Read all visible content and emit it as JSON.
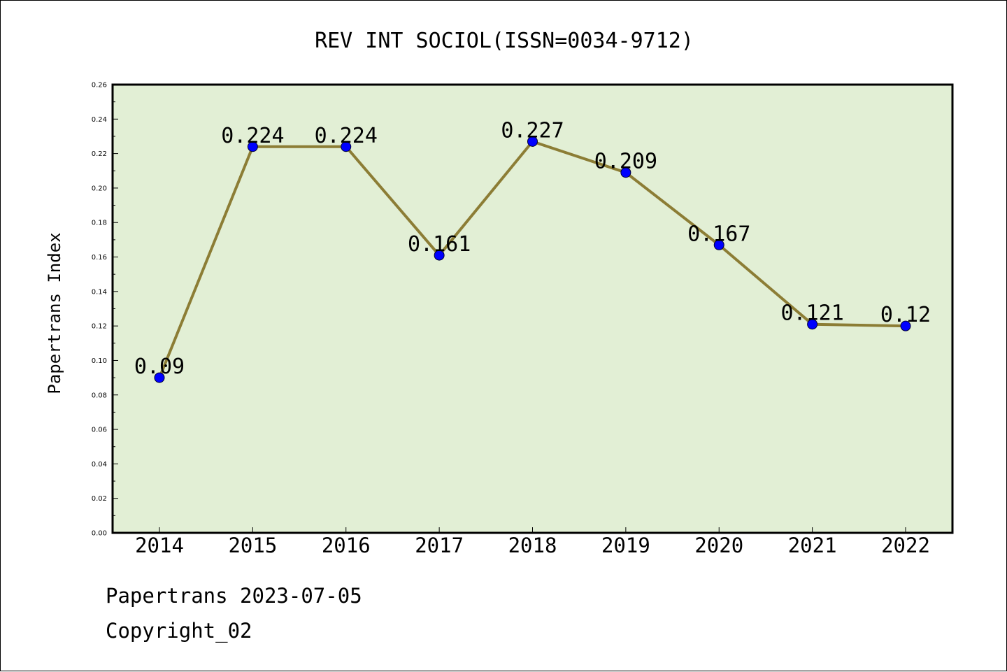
{
  "chart_data": {
    "type": "line",
    "title": "REV INT SOCIOL(ISSN=0034-9712)",
    "ylabel": "Papertrans Index",
    "xlabel": "",
    "categories": [
      "2014",
      "2015",
      "2016",
      "2017",
      "2018",
      "2019",
      "2020",
      "2021",
      "2022"
    ],
    "series": [
      {
        "values": [
          0.09,
          0.224,
          0.224,
          0.161,
          0.227,
          0.209,
          0.167,
          0.121,
          0.12
        ]
      }
    ],
    "data_labels": [
      "0.09",
      "0.224",
      "0.224",
      "0.161",
      "0.227",
      "0.209",
      "0.167",
      "0.121",
      "0.12"
    ],
    "ylim": [
      0,
      0.26
    ],
    "y_ticks": [
      "0.00",
      "0.02",
      "0.04",
      "0.06",
      "0.08",
      "0.10",
      "0.12",
      "0.14",
      "0.16",
      "0.18",
      "0.20",
      "0.22",
      "0.24",
      "0.26"
    ],
    "grid": false,
    "colors": {
      "plot_background": "#e2efd5",
      "line": "#8c7d35",
      "marker": "#0000ff"
    }
  },
  "footer": {
    "line1": "Papertrans 2023-07-05",
    "line2": "Copyright_02"
  }
}
